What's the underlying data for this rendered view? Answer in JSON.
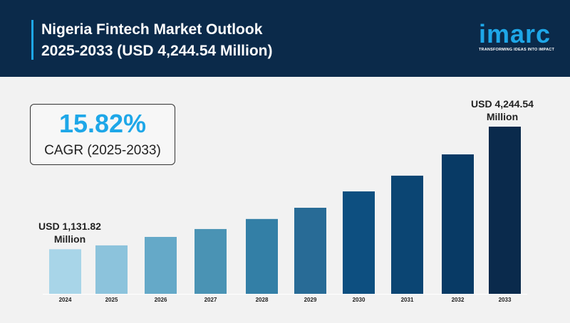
{
  "header": {
    "title_line1": "Nigeria Fintech Market Outlook",
    "title_line2": "2025-2033 (USD 4,244.54 Million)",
    "logo": "imarc",
    "tagline": "TRANSFORMING IDEAS INTO IMPACT"
  },
  "cagr": {
    "value": "15.82%",
    "label": "CAGR (2025-2033)"
  },
  "colors": {
    "header": "#0b2a4a",
    "accent": "#1ea7e8"
  },
  "chart_data": {
    "type": "bar",
    "categories": [
      "2024",
      "2025",
      "2026",
      "2027",
      "2028",
      "2029",
      "2030",
      "2031",
      "2032",
      "2033"
    ],
    "values": [
      1131.82,
      1230,
      1445,
      1645,
      1900,
      2185,
      2600,
      3000,
      3540,
      4244.54
    ],
    "colors": [
      "#a8d5e8",
      "#8cc3dc",
      "#65a9c8",
      "#4a93b4",
      "#337fa6",
      "#286b96",
      "#0d4f80",
      "#0b4573",
      "#083a65",
      "#0a2a4c"
    ],
    "annotations": [
      {
        "category": "2024",
        "line1": "USD 1,131.82",
        "line2": "Million"
      },
      {
        "category": "2033",
        "line1": "USD 4,244.54",
        "line2": "Million"
      }
    ],
    "ylim": [
      0,
      4244.54
    ],
    "grid": false
  }
}
